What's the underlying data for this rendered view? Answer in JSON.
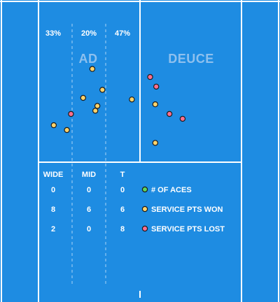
{
  "chart_data": {
    "type": "scatter",
    "title": "",
    "court": {
      "box_labels": [
        "AD",
        "DEUCE"
      ],
      "zone_percentages": [
        {
          "zone": "WIDE",
          "value": "33%"
        },
        {
          "zone": "MID",
          "value": "20%"
        },
        {
          "zone": "T",
          "value": "47%"
        }
      ]
    },
    "columns": [
      "WIDE",
      "MID",
      "T"
    ],
    "rows": [
      {
        "label": "# OF ACES",
        "values": [
          0,
          0,
          0
        ],
        "color": "#5fd35c"
      },
      {
        "label": "SERVICE PTS WON",
        "values": [
          8,
          6,
          6
        ],
        "color": "#ffd36b"
      },
      {
        "label": "SERVICE PTS LOST",
        "values": [
          2,
          0,
          8
        ],
        "color": "#ff6f8f"
      }
    ],
    "series": [
      {
        "result": "won",
        "color": "#ffd36b",
        "points": [
          {
            "x": 0.15,
            "y": 0.77
          },
          {
            "x": 0.28,
            "y": 0.8
          },
          {
            "x": 0.53,
            "y": 0.42
          },
          {
            "x": 0.63,
            "y": 0.55
          },
          {
            "x": 0.44,
            "y": 0.6
          },
          {
            "x": 0.58,
            "y": 0.65
          },
          {
            "x": 0.56,
            "y": 0.68
          },
          {
            "x": 0.92,
            "y": 0.61
          },
          {
            "x": 1.15,
            "y": 0.64
          },
          {
            "x": 1.15,
            "y": 0.88
          }
        ]
      },
      {
        "result": "lost",
        "color": "#ff6f8f",
        "points": [
          {
            "x": 0.32,
            "y": 0.7
          },
          {
            "x": 1.1,
            "y": 0.47
          },
          {
            "x": 1.16,
            "y": 0.53
          },
          {
            "x": 1.29,
            "y": 0.7
          },
          {
            "x": 1.42,
            "y": 0.73
          }
        ]
      }
    ]
  },
  "colors": {
    "court": "#1e8ce2",
    "lines": "#ffffff",
    "zone_divider": "#a9d3f6"
  }
}
